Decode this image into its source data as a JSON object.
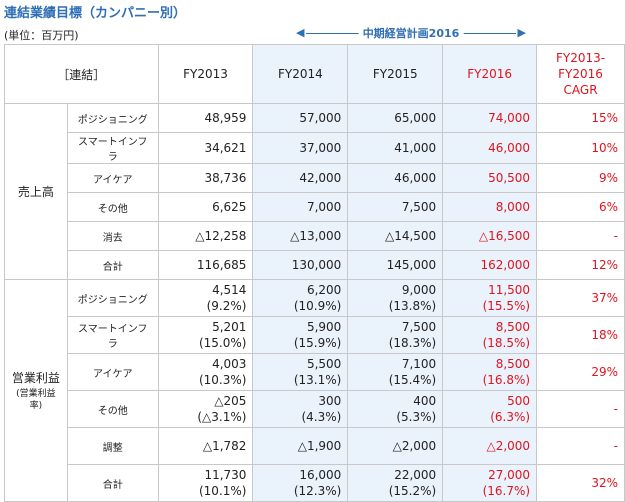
{
  "title": "連結業績目標（カンパニー別）",
  "unit": "(単位：百万円)",
  "plan_label": "中期経営計画2016",
  "header": {
    "corner": "［連結］",
    "fy2013": "FY2013",
    "fy2014": "FY2014",
    "fy2015": "FY2015",
    "fy2016": "FY2016",
    "cagr": "FY2013-\nFY2016\nCAGR"
  },
  "sales": {
    "label": "売上高",
    "rows": [
      {
        "name": "ポジショニング",
        "fy2013": "48,959",
        "fy2014": "57,000",
        "fy2015": "65,000",
        "fy2016": "74,000",
        "cagr": "15%"
      },
      {
        "name": "スマートインフラ",
        "fy2013": "34,621",
        "fy2014": "37,000",
        "fy2015": "41,000",
        "fy2016": "46,000",
        "cagr": "10%"
      },
      {
        "name": "アイケア",
        "fy2013": "38,736",
        "fy2014": "42,000",
        "fy2015": "46,000",
        "fy2016": "50,500",
        "cagr": "9%"
      },
      {
        "name": "その他",
        "fy2013": "6,625",
        "fy2014": "7,000",
        "fy2015": "7,500",
        "fy2016": "8,000",
        "cagr": "6%"
      },
      {
        "name": "消去",
        "fy2013": "△12,258",
        "fy2014": "△13,000",
        "fy2015": "△14,500",
        "fy2016": "△16,500",
        "cagr": "-"
      },
      {
        "name": "合計",
        "fy2013": "116,685",
        "fy2014": "130,000",
        "fy2015": "145,000",
        "fy2016": "162,000",
        "cagr": "12%"
      }
    ]
  },
  "profit": {
    "label": "営業利益",
    "sublabel": "(営業利益率)",
    "rows": [
      {
        "name": "ポジショニング",
        "fy2013": "4,514",
        "fy2013_r": "(9.2%)",
        "fy2014": "6,200",
        "fy2014_r": "(10.9%)",
        "fy2015": "9,000",
        "fy2015_r": "(13.8%)",
        "fy2016": "11,500",
        "fy2016_r": "(15.5%)",
        "cagr": "37%"
      },
      {
        "name": "スマートインフラ",
        "fy2013": "5,201",
        "fy2013_r": "(15.0%)",
        "fy2014": "5,900",
        "fy2014_r": "(15.9%)",
        "fy2015": "7,500",
        "fy2015_r": "(18.3%)",
        "fy2016": "8,500",
        "fy2016_r": "(18.5%)",
        "cagr": "18%"
      },
      {
        "name": "アイケア",
        "fy2013": "4,003",
        "fy2013_r": "(10.3%)",
        "fy2014": "5,500",
        "fy2014_r": "(13.1%)",
        "fy2015": "7,100",
        "fy2015_r": "(15.4%)",
        "fy2016": "8,500",
        "fy2016_r": "(16.8%)",
        "cagr": "29%"
      },
      {
        "name": "その他",
        "fy2013": "△205",
        "fy2013_r": "(△3.1%)",
        "fy2014": "300",
        "fy2014_r": "(4.3%)",
        "fy2015": "400",
        "fy2015_r": "(5.3%)",
        "fy2016": "500",
        "fy2016_r": "(6.3%)",
        "cagr": "-"
      },
      {
        "name": "調整",
        "fy2013": "△1,782",
        "fy2014": "△1,900",
        "fy2015": "△2,000",
        "fy2016": "△2,000",
        "cagr": "-"
      },
      {
        "name": "合計",
        "fy2013": "11,730",
        "fy2013_r": "(10.1%)",
        "fy2014": "16,000",
        "fy2014_r": "(12.3%)",
        "fy2015": "22,000",
        "fy2015_r": "(15.2%)",
        "fy2016": "27,000",
        "fy2016_r": "(16.7%)",
        "cagr": "32%"
      }
    ]
  }
}
